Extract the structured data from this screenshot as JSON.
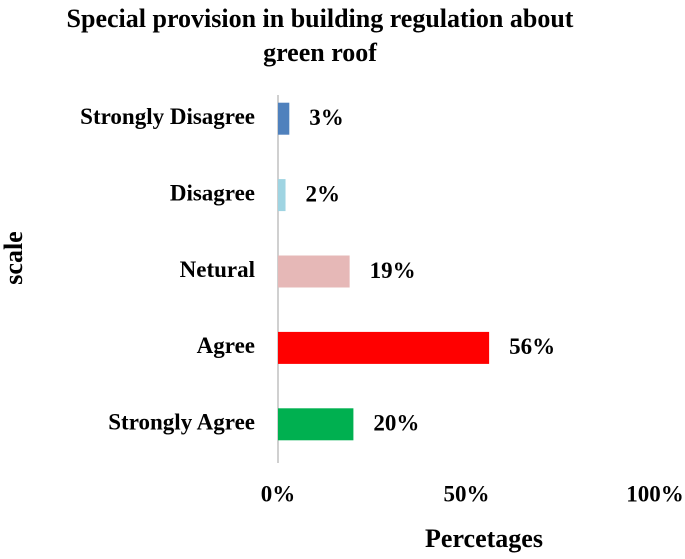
{
  "chart_data": {
    "type": "barh",
    "title": "Special provision in building regulation about green roof",
    "xlabel": "Percetages",
    "ylabel": "scale",
    "categories": [
      "Strongly Disagree",
      "Disagree",
      "Netural",
      "Agree",
      "Strongly Agree"
    ],
    "values": [
      3,
      2,
      19,
      56,
      20
    ],
    "value_labels": [
      "3%",
      "2%",
      "19%",
      "56%",
      "20%"
    ],
    "colors": [
      "#4f81bd",
      "#9fd4e2",
      "#e6b8b7",
      "#ff0000",
      "#00b050"
    ],
    "xlim": [
      0,
      100
    ],
    "xticks": [
      {
        "value": 0,
        "label": "0%"
      },
      {
        "value": 50,
        "label": "50%"
      },
      {
        "value": 100,
        "label": "100%"
      }
    ],
    "grid": false
  }
}
